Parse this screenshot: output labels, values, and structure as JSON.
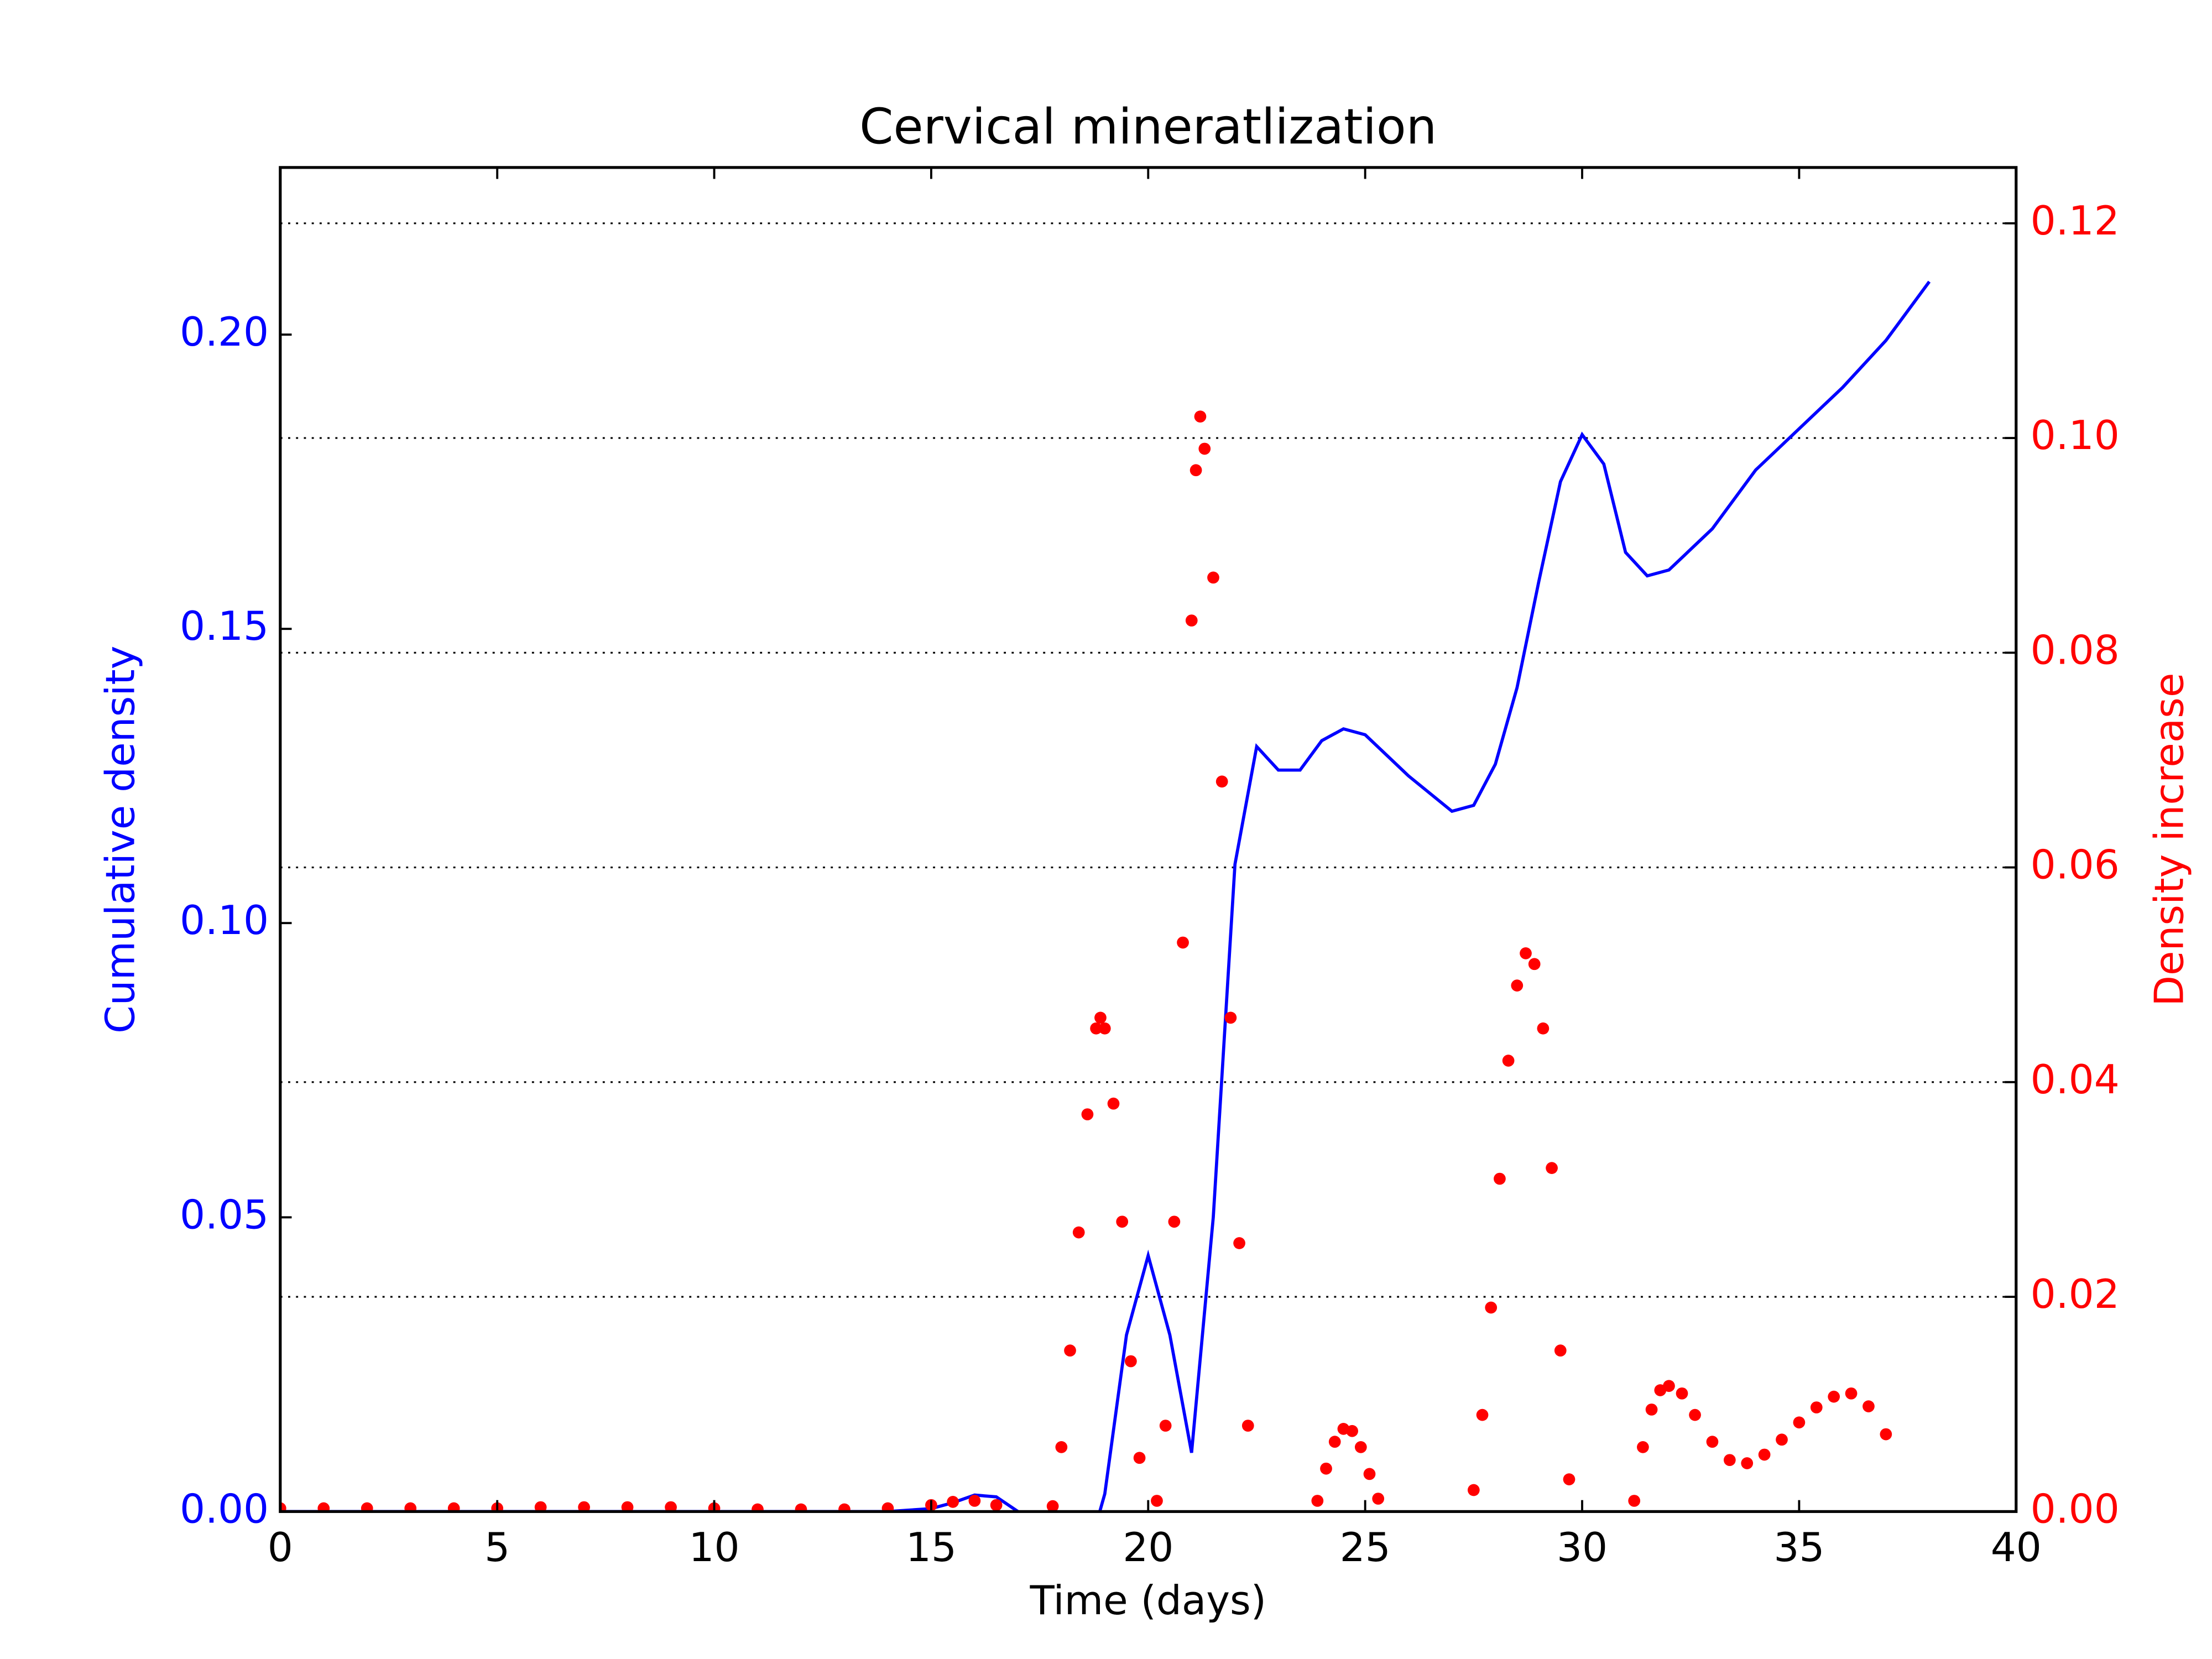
{
  "chart_data": {
    "type": "line_scatter",
    "title": "Cervical mineratlization",
    "x_label": "Time (days)",
    "y_label": "Cumulative density",
    "y2_label": "Density increase",
    "xlim": [
      0,
      40
    ],
    "xticks": [
      0,
      5,
      10,
      15,
      20,
      25,
      30,
      35,
      40
    ],
    "ylim": [
      0,
      0.2284
    ],
    "yticks": [
      {
        "value": 0,
        "label": "0.00"
      },
      {
        "value": 0.05,
        "label": "0.05"
      },
      {
        "value": 0.1,
        "label": "0.10"
      },
      {
        "value": 0.15,
        "label": "0.15"
      },
      {
        "value": 0.2,
        "label": "0.20"
      }
    ],
    "y2lim": [
      0,
      0.1252
    ],
    "y2ticks": [
      {
        "value": 0,
        "label": "0.00"
      },
      {
        "value": 0.02,
        "label": "0.02"
      },
      {
        "value": 0.04,
        "label": "0.04"
      },
      {
        "value": 0.06,
        "label": "0.06"
      },
      {
        "value": 0.08,
        "label": "0.08"
      },
      {
        "value": 0.1,
        "label": "0.10"
      },
      {
        "value": 0.12,
        "label": "0.12"
      }
    ],
    "grid": true,
    "series": [
      {
        "type": "line",
        "color": "#0000ff",
        "x": [
          0,
          2,
          4,
          6,
          8,
          10,
          12,
          14,
          15,
          15.5,
          16,
          16.5,
          17,
          17.5,
          18,
          18.5,
          19,
          19.5,
          20,
          20.5,
          21,
          21.5,
          22,
          22.5,
          23,
          23.5,
          24,
          24.5,
          25,
          26,
          27,
          27.5,
          28,
          28.5,
          29,
          29.5,
          30,
          30.5,
          31,
          31.5,
          32,
          33,
          34,
          35,
          36,
          37,
          38
        ],
        "values": [
          0,
          0,
          0,
          0,
          0,
          0,
          0,
          0,
          0.0005,
          0.0015,
          0.0028,
          0.0025,
          0,
          -0.01,
          -0.015,
          -0.01,
          0.003,
          0.03,
          0.0435,
          0.03,
          0.01,
          0.05,
          0.11,
          0.13,
          0.126,
          0.126,
          0.131,
          0.133,
          0.132,
          0.125,
          0.119,
          0.12,
          0.127,
          0.14,
          0.158,
          0.175,
          0.183,
          0.178,
          0.163,
          0.159,
          0.16,
          0.167,
          0.177,
          0.184,
          0.191,
          0.199,
          0.209
        ]
      },
      {
        "type": "scatter",
        "color": "#ff0000",
        "axis": "y2",
        "x": [
          0,
          1,
          2,
          3,
          4,
          5,
          6,
          7,
          8,
          9,
          10,
          11,
          12,
          13,
          14,
          15,
          15.5,
          16,
          16.5,
          17.8,
          18,
          18.2,
          18.4,
          18.6,
          18.8,
          18.9,
          19,
          19.2,
          19.4,
          19.6,
          19.8,
          20.2,
          20.4,
          20.6,
          20.8,
          21,
          21.1,
          21.2,
          21.3,
          21.5,
          21.7,
          21.9,
          22.1,
          22.3,
          23.9,
          24.1,
          24.3,
          24.5,
          24.7,
          24.9,
          25.1,
          25.3,
          27.5,
          27.7,
          27.9,
          28.1,
          28.3,
          28.5,
          28.7,
          28.9,
          29.1,
          29.3,
          29.5,
          29.7,
          31.2,
          31.4,
          31.6,
          31.8,
          32,
          32.3,
          32.6,
          33,
          33.4,
          33.8,
          34.2,
          34.6,
          35,
          35.4,
          35.8,
          36.2,
          36.6,
          37
        ],
        "values": [
          0.0003,
          0.0003,
          0.0003,
          0.0003,
          0.0003,
          0.0003,
          0.0004,
          0.0004,
          0.0004,
          0.0004,
          0.0003,
          0.0002,
          0.0002,
          0.0002,
          0.0003,
          0.0006,
          0.0009,
          0.001,
          0.0006,
          0.0005,
          0.006,
          0.015,
          0.026,
          0.037,
          0.045,
          0.046,
          0.045,
          0.038,
          0.027,
          0.014,
          0.005,
          0.001,
          0.008,
          0.027,
          0.053,
          0.083,
          0.097,
          0.102,
          0.099,
          0.087,
          0.068,
          0.046,
          0.025,
          0.008,
          0.001,
          0.004,
          0.0065,
          0.0077,
          0.0075,
          0.006,
          0.0035,
          0.0012,
          0.002,
          0.009,
          0.019,
          0.031,
          0.042,
          0.049,
          0.052,
          0.051,
          0.045,
          0.032,
          0.015,
          0.003,
          0.001,
          0.006,
          0.0095,
          0.0113,
          0.0117,
          0.011,
          0.009,
          0.0065,
          0.0048,
          0.0045,
          0.0053,
          0.0067,
          0.0083,
          0.0097,
          0.0107,
          0.011,
          0.0098,
          0.0072
        ]
      }
    ]
  }
}
